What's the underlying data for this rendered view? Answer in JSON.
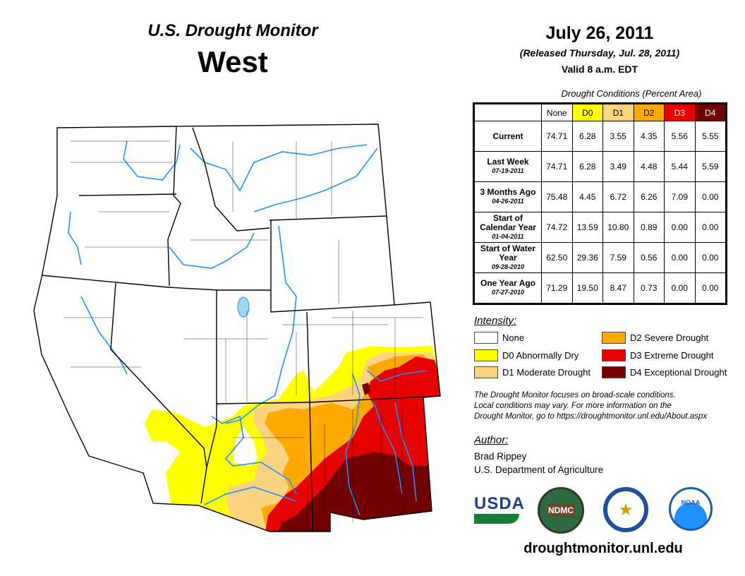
{
  "header": {
    "product": "U.S. Drought Monitor",
    "region": "West",
    "date": "July 26, 2011",
    "released": "(Released Thursday, Jul. 28, 2011)",
    "valid": "Valid 8 a.m. EDT"
  },
  "table": {
    "caption": "Drought Conditions (Percent Area)",
    "columns": [
      "None",
      "D0",
      "D1",
      "D2",
      "D3",
      "D4"
    ],
    "rows": [
      {
        "label": "Current",
        "date": "",
        "values": [
          "74.71",
          "6.28",
          "3.55",
          "4.35",
          "5.56",
          "5.55"
        ]
      },
      {
        "label": "Last Week",
        "date": "07-19-2011",
        "values": [
          "74.71",
          "6.28",
          "3.49",
          "4.48",
          "5.44",
          "5.59"
        ]
      },
      {
        "label": "3 Months Ago",
        "date": "04-26-2011",
        "values": [
          "75.48",
          "4.45",
          "6.72",
          "6.26",
          "7.09",
          "0.00"
        ]
      },
      {
        "label": "Start of Calendar Year",
        "date": "01-04-2011",
        "values": [
          "74.72",
          "13.59",
          "10.80",
          "0.89",
          "0.00",
          "0.00"
        ]
      },
      {
        "label": "Start of Water Year",
        "date": "09-28-2010",
        "values": [
          "62.50",
          "29.36",
          "7.59",
          "0.56",
          "0.00",
          "0.00"
        ]
      },
      {
        "label": "One Year Ago",
        "date": "07-27-2010",
        "values": [
          "71.29",
          "19.50",
          "8.47",
          "0.73",
          "0.00",
          "0.00"
        ]
      }
    ]
  },
  "legend": {
    "title": "Intensity:",
    "items": [
      {
        "label": "None",
        "color": "#ffffff"
      },
      {
        "label": "D0 Abnormally Dry",
        "color": "#ffff00"
      },
      {
        "label": "D1 Moderate Drought",
        "color": "#fcd37f"
      },
      {
        "label": "D2 Severe Drought",
        "color": "#ffaa00"
      },
      {
        "label": "D3 Extreme Drought",
        "color": "#e60000"
      },
      {
        "label": "D4 Exceptional Drought",
        "color": "#730000"
      }
    ]
  },
  "note": [
    "The Drought Monitor focuses on broad-scale conditions.",
    "Local conditions may vary. For more information on the",
    "Drought Monitor, go to https://droughtmonitor.unl.edu/About.aspx"
  ],
  "author": {
    "title": "Author:",
    "name": "Brad Rippey",
    "org": "U.S. Department of Agriculture"
  },
  "logos": {
    "usda": "USDA",
    "ndmc": "NDMC",
    "noaa": "NOAA"
  },
  "url": "droughtmonitor.unl.edu"
}
